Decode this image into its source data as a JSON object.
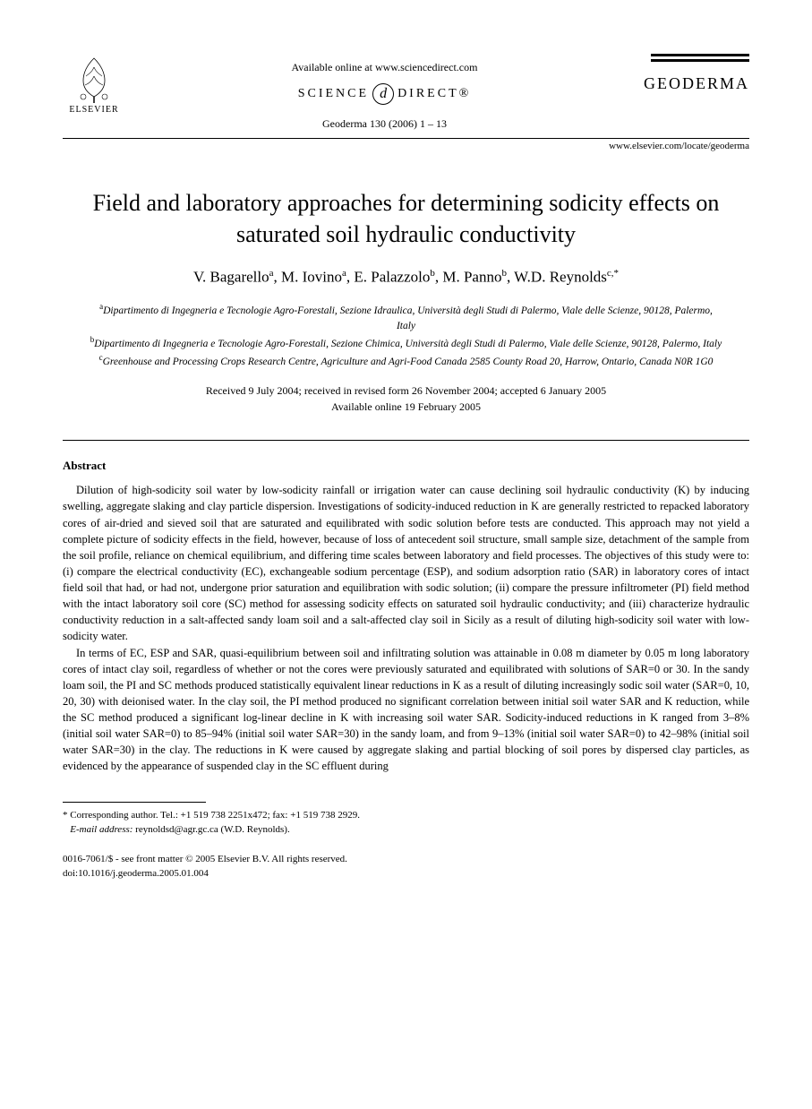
{
  "header": {
    "publisher_name": "ELSEVIER",
    "available_text": "Available online at www.sciencedirect.com",
    "sd_left": "SCIENCE",
    "sd_d": "d",
    "sd_right": "DIRECT®",
    "journal_ref": "Geoderma 130 (2006) 1 – 13",
    "journal_name": "GEODERMA",
    "journal_url": "www.elsevier.com/locate/geoderma"
  },
  "title": "Field and laboratory approaches for determining sodicity effects on saturated soil hydraulic conductivity",
  "authors_html": "V. Bagarello<sup>a</sup>, M. Iovino<sup>a</sup>, E. Palazzolo<sup>b</sup>, M. Panno<sup>b</sup>, W.D. Reynolds<sup>c,*</sup>",
  "affiliations": [
    {
      "sup": "a",
      "text": "Dipartimento di Ingegneria e Tecnologie Agro-Forestali, Sezione Idraulica, Università degli Studi di Palermo, Viale delle Scienze, 90128, Palermo, Italy"
    },
    {
      "sup": "b",
      "text": "Dipartimento di Ingegneria e Tecnologie Agro-Forestali, Sezione Chimica, Università degli Studi di Palermo, Viale delle Scienze, 90128, Palermo, Italy"
    },
    {
      "sup": "c",
      "text": "Greenhouse and Processing Crops Research Centre, Agriculture and Agri-Food Canada 2585 County Road 20, Harrow, Ontario, Canada N0R 1G0"
    }
  ],
  "dates": {
    "line1": "Received 9 July 2004; received in revised form 26 November 2004; accepted 6 January 2005",
    "line2": "Available online 19 February 2005"
  },
  "abstract": {
    "heading": "Abstract",
    "paragraphs": [
      "Dilution of high-sodicity soil water by low-sodicity rainfall or irrigation water can cause declining soil hydraulic conductivity (K) by inducing swelling, aggregate slaking and clay particle dispersion. Investigations of sodicity-induced reduction in K are generally restricted to repacked laboratory cores of air-dried and sieved soil that are saturated and equilibrated with sodic solution before tests are conducted. This approach may not yield a complete picture of sodicity effects in the field, however, because of loss of antecedent soil structure, small sample size, detachment of the sample from the soil profile, reliance on chemical equilibrium, and differing time scales between laboratory and field processes. The objectives of this study were to: (i) compare the electrical conductivity (EC), exchangeable sodium percentage (ESP), and sodium adsorption ratio (SAR) in laboratory cores of intact field soil that had, or had not, undergone prior saturation and equilibration with sodic solution; (ii) compare the pressure infiltrometer (PI) field method with the intact laboratory soil core (SC) method for assessing sodicity effects on saturated soil hydraulic conductivity; and (iii) characterize hydraulic conductivity reduction in a salt-affected sandy loam soil and a salt-affected clay soil in Sicily as a result of diluting high-sodicity soil water with low-sodicity water.",
      "In terms of EC, ESP and SAR, quasi-equilibrium between soil and infiltrating solution was attainable in 0.08 m diameter by 0.05 m long laboratory cores of intact clay soil, regardless of whether or not the cores were previously saturated and equilibrated with solutions of SAR=0 or 30. In the sandy loam soil, the PI and SC methods produced statistically equivalent linear reductions in K as a result of diluting increasingly sodic soil water (SAR=0, 10, 20, 30) with deionised water. In the clay soil, the PI method produced no significant correlation between initial soil water SAR and K reduction, while the SC method produced a significant log-linear decline in K with increasing soil water SAR. Sodicity-induced reductions in K ranged from 3–8% (initial soil water SAR=0) to 85–94% (initial soil water SAR=30) in the sandy loam, and from 9–13% (initial soil water SAR=0) to 42–98% (initial soil water SAR=30) in the clay. The reductions in K were caused by aggregate slaking and partial blocking of soil pores by dispersed clay particles, as evidenced by the appearance of suspended clay in the SC effluent during"
    ]
  },
  "footer": {
    "corr_line": "* Corresponding author. Tel.: +1 519 738 2251x472; fax: +1 519 738 2929.",
    "email_label": "E-mail address:",
    "email_value": "reynoldsd@agr.gc.ca (W.D. Reynolds).",
    "issn_line": "0016-7061/$ - see front matter © 2005 Elsevier B.V. All rights reserved.",
    "doi_line": "doi:10.1016/j.geoderma.2005.01.004"
  }
}
